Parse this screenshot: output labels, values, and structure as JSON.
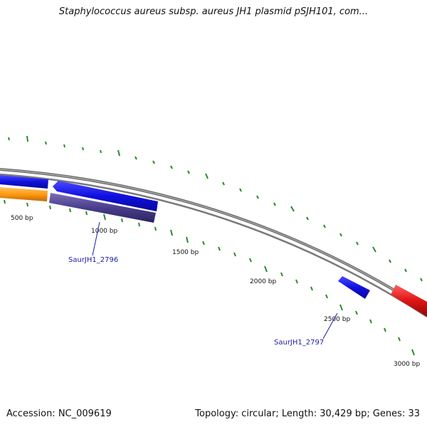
{
  "title": "Staphylococcus aureus subsp. aureus JH1 plasmid pSJH101, com...",
  "footer": {
    "accession": "Accession: NC_009619",
    "summary": "Topology: circular; Length: 30,429 bp; Genes: 33"
  },
  "colors": {
    "backbone": "#8a8a8a",
    "tick": "#2a8a2a",
    "gene_blue": "#1414e0",
    "gene_orange": "#ff9a14",
    "gene_purple": "#4a3d8c",
    "gene_red": "#e01414",
    "label": "#1a1aa8"
  },
  "ticks": [
    {
      "label": "500 bp"
    },
    {
      "label": "1000 bp"
    },
    {
      "label": "1500 bp"
    },
    {
      "label": "2000 bp"
    },
    {
      "label": "2500 bp"
    },
    {
      "label": "3000 bp"
    }
  ],
  "genes": [
    {
      "label": "SaurJH1_2796"
    },
    {
      "label": "SaurJH1_2797"
    }
  ]
}
